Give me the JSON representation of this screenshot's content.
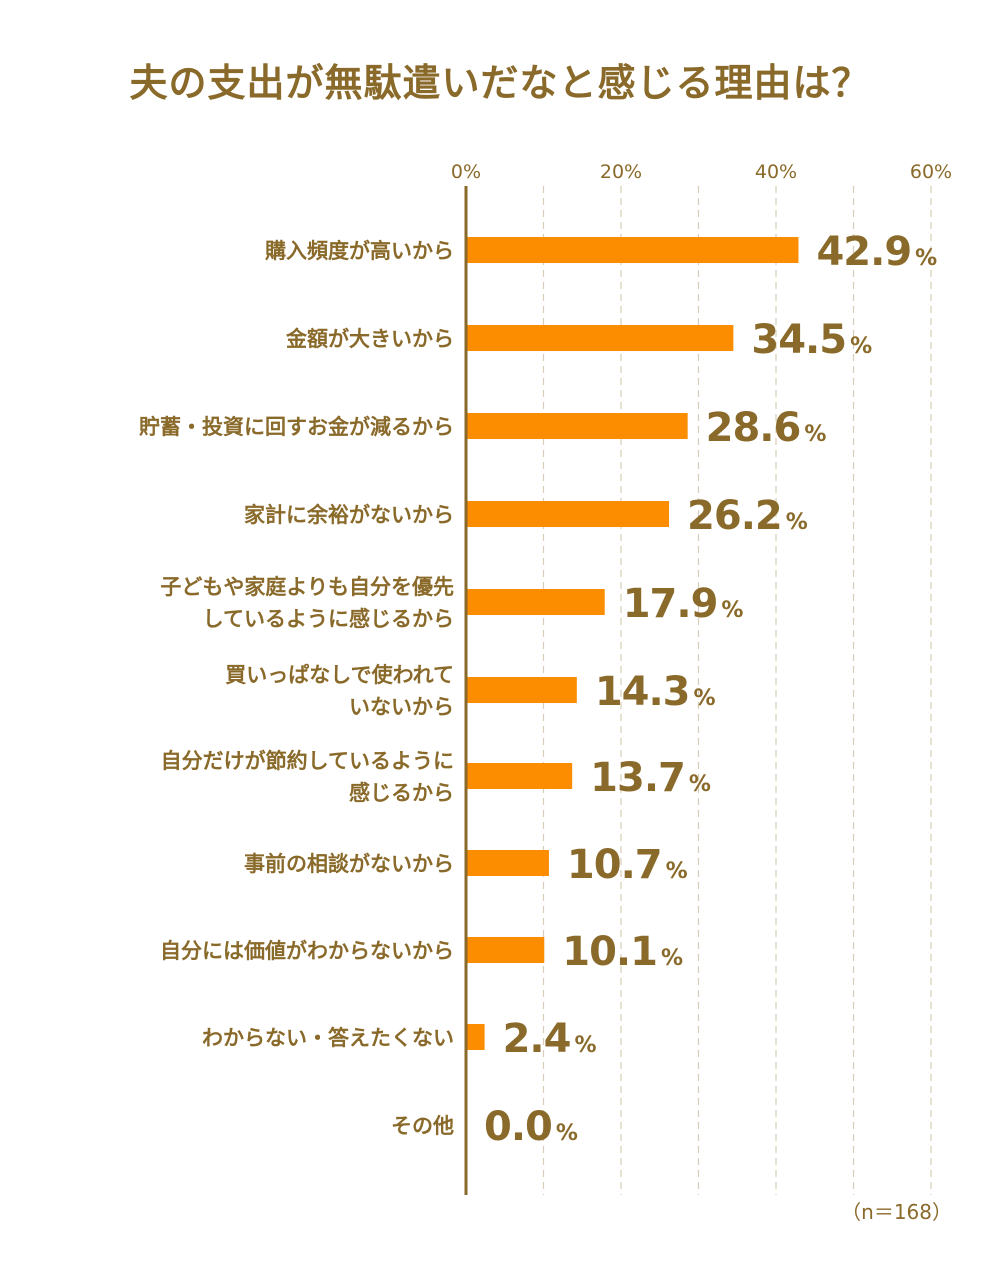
{
  "chart_data": {
    "type": "bar",
    "orientation": "horizontal",
    "title": "夫の支出が無駄遣いだなと感じる理由は？",
    "categories": [
      [
        "購入頻度が高いから"
      ],
      [
        "金額が大きいから"
      ],
      [
        "貯蓄・投資に回すお金が減るから"
      ],
      [
        "家計に余裕がないから"
      ],
      [
        "子どもや家庭よりも自分を優先",
        "しているように感じるから"
      ],
      [
        "買いっぱなしで使われて",
        "いないから"
      ],
      [
        "自分だけが節約しているように",
        "感じるから"
      ],
      [
        "事前の相談がないから"
      ],
      [
        "自分には価値がわからないから"
      ],
      [
        "わからない・答えたくない"
      ],
      [
        "その他"
      ]
    ],
    "values": [
      42.9,
      34.5,
      28.6,
      26.2,
      17.9,
      14.3,
      13.7,
      10.7,
      10.1,
      2.4,
      0.0
    ],
    "value_labels": [
      "42.9",
      "34.5",
      "28.6",
      "26.2",
      "17.9",
      "14.3",
      "13.7",
      "10.7",
      "10.1",
      "2.4",
      "0.0"
    ],
    "value_unit": "%",
    "xlim": [
      0,
      60
    ],
    "ticks": [
      "0%",
      "20%",
      "40%",
      "60%"
    ],
    "tick_values": [
      0,
      20,
      40,
      60
    ],
    "minor_grid_values": [
      10,
      30,
      50
    ],
    "grid": true,
    "axis_position": "top",
    "note": "（n＝168）",
    "colors": {
      "bar": "#fc8c00",
      "text": "#8a6a2a",
      "axis": "#8a6a2a",
      "grid": "#d7cdb8"
    }
  }
}
